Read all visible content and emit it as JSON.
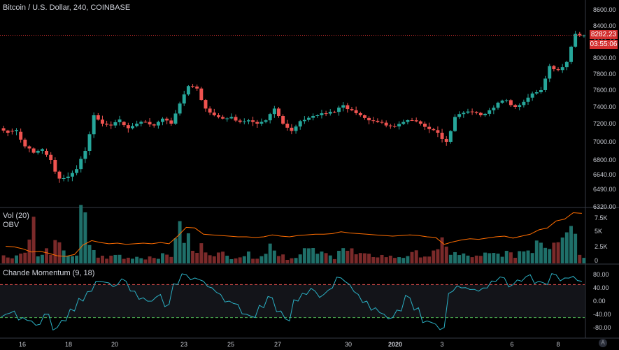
{
  "legend": {
    "symbol": "Bitcoin / U.S. Dollar, 240, COINBASE",
    "volume_label": "Vol (20)",
    "obv_label": "OBV",
    "cmo_label": "Chande Momentum (9, 18)"
  },
  "price_axis": {
    "ticks": [
      "8600.00",
      "8400.00",
      "8200.00",
      "8000.00",
      "7800.00",
      "7600.00",
      "7400.00",
      "7200.00",
      "7000.00",
      "6800.00",
      "6640.00",
      "6490.00",
      "6320.00"
    ],
    "last_price": "8282.23",
    "countdown": "03:55:06",
    "last_price_color": "#d32f2f"
  },
  "volume_axis": {
    "ticks": [
      "7.5K",
      "5K",
      "2.5K",
      "0"
    ]
  },
  "cmo_axis": {
    "ticks": [
      "80.00",
      "40.00",
      "0.00",
      "-40.00",
      "-80.00"
    ],
    "upper_level": 50,
    "lower_level": -50
  },
  "time_axis": {
    "labels": [
      "16",
      "18",
      "20",
      "23",
      "25",
      "27",
      "30",
      "2020",
      "3",
      "6",
      "8"
    ]
  },
  "colors": {
    "up": "#26a69a",
    "down": "#ef5350",
    "obv": "#ff6d00",
    "cmo": "#2bb1c5",
    "upper_band": "#ef5350",
    "lower_band": "#4caf50"
  },
  "icons": {
    "axis_settings": "auto-scale-icon"
  },
  "chart_data": {
    "type": "candlestick",
    "title": "Bitcoin / U.S. Dollar, 240, COINBASE",
    "interval": "240",
    "last_price": 8282.23,
    "keypoints": [
      [
        7150,
        7100
      ],
      [
        7120,
        7130
      ],
      [
        7110,
        6950
      ],
      [
        6950,
        6880
      ],
      [
        6880,
        6920
      ],
      [
        6900,
        6800
      ],
      [
        6800,
        6600
      ],
      [
        6600,
        6620
      ],
      [
        6620,
        6700
      ],
      [
        6700,
        6900
      ],
      [
        6900,
        7300
      ],
      [
        7300,
        7200
      ],
      [
        7200,
        7180
      ],
      [
        7180,
        7250
      ],
      [
        7220,
        7150
      ],
      [
        7150,
        7200
      ],
      [
        7200,
        7220
      ],
      [
        7220,
        7180
      ],
      [
        7180,
        7260
      ],
      [
        7260,
        7200
      ],
      [
        7200,
        7440
      ],
      [
        7440,
        7650
      ],
      [
        7650,
        7620
      ],
      [
        7620,
        7380
      ],
      [
        7380,
        7300
      ],
      [
        7300,
        7260
      ],
      [
        7260,
        7280
      ],
      [
        7280,
        7220
      ],
      [
        7220,
        7240
      ],
      [
        7240,
        7200
      ],
      [
        7200,
        7240
      ],
      [
        7240,
        7380
      ],
      [
        7380,
        7200
      ],
      [
        7200,
        7120
      ],
      [
        7120,
        7230
      ],
      [
        7230,
        7270
      ],
      [
        7270,
        7300
      ],
      [
        7300,
        7320
      ],
      [
        7320,
        7340
      ],
      [
        7340,
        7420
      ],
      [
        7420,
        7360
      ],
      [
        7360,
        7300
      ],
      [
        7300,
        7240
      ],
      [
        7240,
        7220
      ],
      [
        7220,
        7180
      ],
      [
        7180,
        7170
      ],
      [
        7170,
        7220
      ],
      [
        7220,
        7240
      ],
      [
        7240,
        7200
      ],
      [
        7200,
        7140
      ],
      [
        7140,
        7100
      ],
      [
        7100,
        7000
      ],
      [
        7000,
        7280
      ],
      [
        7280,
        7330
      ],
      [
        7330,
        7340
      ],
      [
        7340,
        7300
      ],
      [
        7300,
        7360
      ],
      [
        7360,
        7450
      ],
      [
        7450,
        7480
      ],
      [
        7480,
        7400
      ],
      [
        7400,
        7460
      ],
      [
        7460,
        7560
      ],
      [
        7560,
        7600
      ],
      [
        7600,
        7900
      ],
      [
        7900,
        7850
      ],
      [
        7850,
        7950
      ],
      [
        7950,
        8300
      ],
      [
        8300,
        8282.23
      ]
    ],
    "volume_ylim": [
      0,
      8500
    ],
    "volume_keypoints": [
      1200,
      1400,
      1800,
      6700,
      1300,
      2200,
      3000,
      1700,
      1500,
      7800,
      2500,
      1100,
      1100,
      1400,
      900,
      1200,
      1000,
      1200,
      1300,
      1400,
      5500,
      4500,
      2000,
      2800,
      2000,
      1600,
      1200,
      1400,
      1500,
      1300,
      1600,
      3200,
      1600,
      900,
      1500,
      2300,
      2000,
      1600,
      1200,
      3100,
      2200,
      1500,
      1300,
      1400,
      1300,
      1100,
      1200,
      1500,
      1700,
      1400,
      1800,
      3800,
      1700,
      1400,
      1300,
      1100,
      1500,
      1600,
      1800,
      1400,
      2200,
      2500,
      4500,
      3400,
      5000,
      5500,
      7500,
      1300
    ],
    "obv_keypoints": [
      2700,
      2600,
      2300,
      1800,
      1900,
      1600,
      1200,
      1100,
      1400,
      2900,
      3600,
      3300,
      3100,
      3200,
      3000,
      3100,
      3200,
      3100,
      3300,
      3100,
      4300,
      5700,
      5600,
      4600,
      4500,
      4400,
      4300,
      4200,
      4200,
      4100,
      4200,
      4500,
      4300,
      4200,
      4400,
      4500,
      4600,
      4600,
      4700,
      5000,
      4800,
      4700,
      4600,
      4500,
      4400,
      4300,
      4400,
      4500,
      4400,
      4200,
      4100,
      3000,
      3400,
      3700,
      3900,
      3800,
      4000,
      4200,
      4300,
      4000,
      4300,
      4600,
      5300,
      5600,
      6700,
      7000,
      8000,
      7900
    ],
    "cmo_ylim": [
      -110,
      110
    ],
    "cmo_keypoints": [
      -40,
      -30,
      -50,
      -60,
      -70,
      -40,
      -80,
      -60,
      -30,
      0,
      30,
      60,
      55,
      50,
      60,
      30,
      10,
      0,
      20,
      -10,
      50,
      80,
      70,
      60,
      40,
      20,
      0,
      -10,
      -40,
      -50,
      -20,
      10,
      -30,
      -60,
      0,
      20,
      30,
      20,
      40,
      70,
      50,
      20,
      0,
      -20,
      -40,
      -50,
      -30,
      10,
      -20,
      -60,
      -70,
      -80,
      30,
      40,
      35,
      30,
      40,
      60,
      70,
      50,
      60,
      80,
      60,
      50,
      80,
      70,
      75,
      60
    ]
  }
}
